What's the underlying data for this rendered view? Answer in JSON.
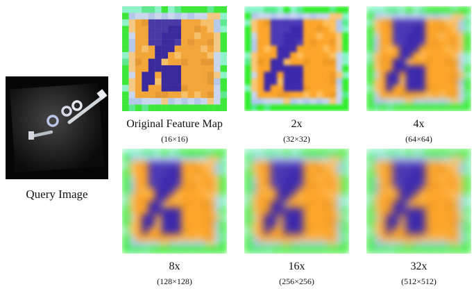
{
  "query": {
    "label": "Query Image"
  },
  "maps": [
    {
      "title": "Original Feature Map",
      "resolution": "(16×16)",
      "blur": 0
    },
    {
      "title": "2x",
      "resolution": "(32×32)",
      "blur": 2.4
    },
    {
      "title": "4x",
      "resolution": "(64×64)",
      "blur": 4.2
    },
    {
      "title": "8x",
      "resolution": "(128×128)",
      "blur": 5.4
    },
    {
      "title": "16x",
      "resolution": "(256×256)",
      "blur": 5.9
    },
    {
      "title": "32x",
      "resolution": "(512×512)",
      "blur": 6.2
    }
  ],
  "colors": {
    "border": "#3ee83a",
    "border_light": "#8ff2c8",
    "field": "#f2a63a",
    "object": "#3b2a9c"
  }
}
